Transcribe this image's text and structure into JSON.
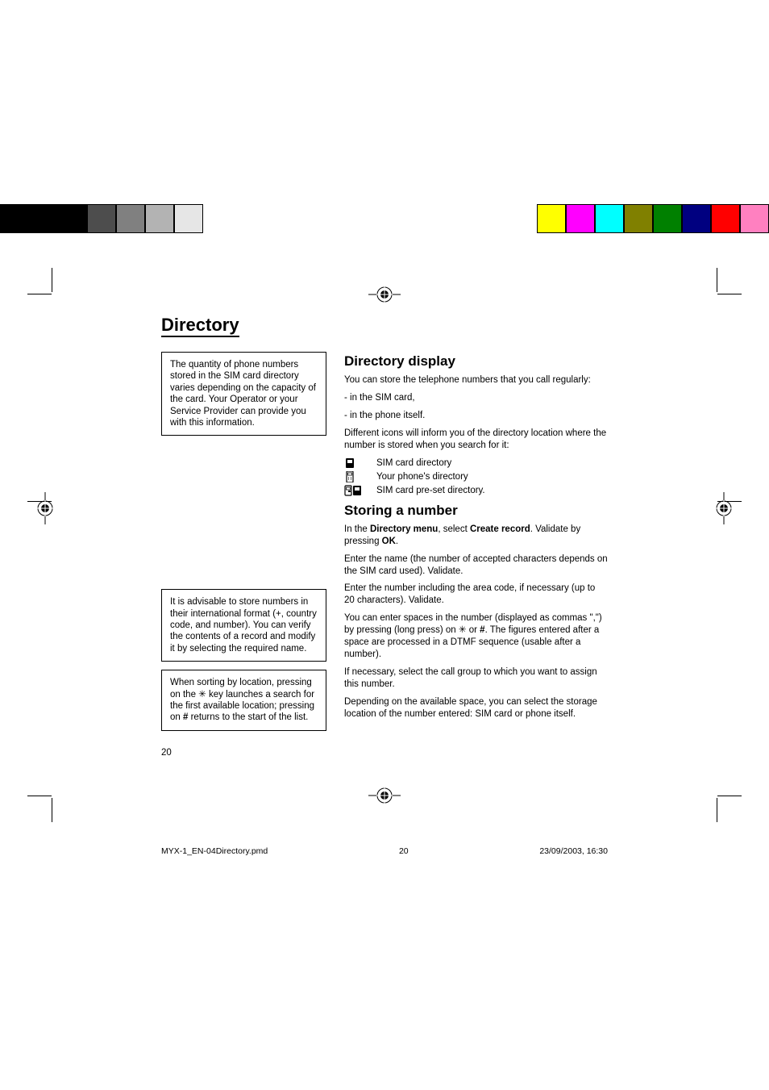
{
  "colorbars": {
    "left": [
      "#000000",
      "#000000",
      "#000000",
      "#4d4d4d",
      "#808080",
      "#b3b3b3",
      "#e6e6e6"
    ],
    "right": [
      "#ffff00",
      "#ff00ff",
      "#00ffff",
      "#808000",
      "#008000",
      "#000080",
      "#ff0000",
      "#ff80c0"
    ]
  },
  "page": {
    "title": "Directory",
    "number": "20"
  },
  "sidebars": {
    "box1": "The quantity of phone numbers stored in the SIM card directory varies depending on the capacity of the card. Your Operator or your Service Provider can provide you with this information.",
    "box2": "It is advisable to store numbers in their international format (+, country code, and number). You can verify the contents of a record and modify it by selecting the required name.",
    "box3_pre": "When sorting by location, pressing on the ",
    "box3_mid": " key launches a search for the first available location; pressing on ",
    "box3_hash": "#",
    "box3_post": " returns to the start of the list."
  },
  "sections": {
    "display": {
      "heading": "Directory display",
      "p1": "You can store the telephone numbers that you call regularly:",
      "p2": "- in the SIM card,",
      "p3": "- in the phone itself.",
      "p4": "Different icons will inform you of the directory location where the number is stored when you search for it:",
      "icon1_label": "SIM card directory",
      "icon2_label": "Your phone's directory",
      "icon3_label": "SIM card pre-set directory."
    },
    "storing": {
      "heading": "Storing a number",
      "p1_pre": "In the ",
      "p1_bold1": "Directory menu",
      "p1_mid": ", select ",
      "p1_bold2": "Create record",
      "p1_mid2": ". Validate by pressing ",
      "p1_bold3": "OK",
      "p1_post": ".",
      "p2": "Enter the name (the number of accepted characters depends on the SIM card used). Validate.",
      "p3": "Enter the number including the area code, if necessary (up to 20 characters). Validate.",
      "p4_pre": "You can enter spaces in the number (displayed as commas \",\") by pressing (long press) on ",
      "p4_mid": " or ",
      "p4_hash": "#",
      "p4_post": ". The figures entered after a space are processed in a DTMF sequence (usable after a number).",
      "p5": "If necessary, select the call group to which you want to assign this number.",
      "p6": "Depending on the available space, you can select the storage location of the number entered: SIM card or phone itself."
    }
  },
  "footer": {
    "filename": "MYX-1_EN-04Directory.pmd",
    "pagenum": "20",
    "timestamp": "23/09/2003, 16:30"
  }
}
